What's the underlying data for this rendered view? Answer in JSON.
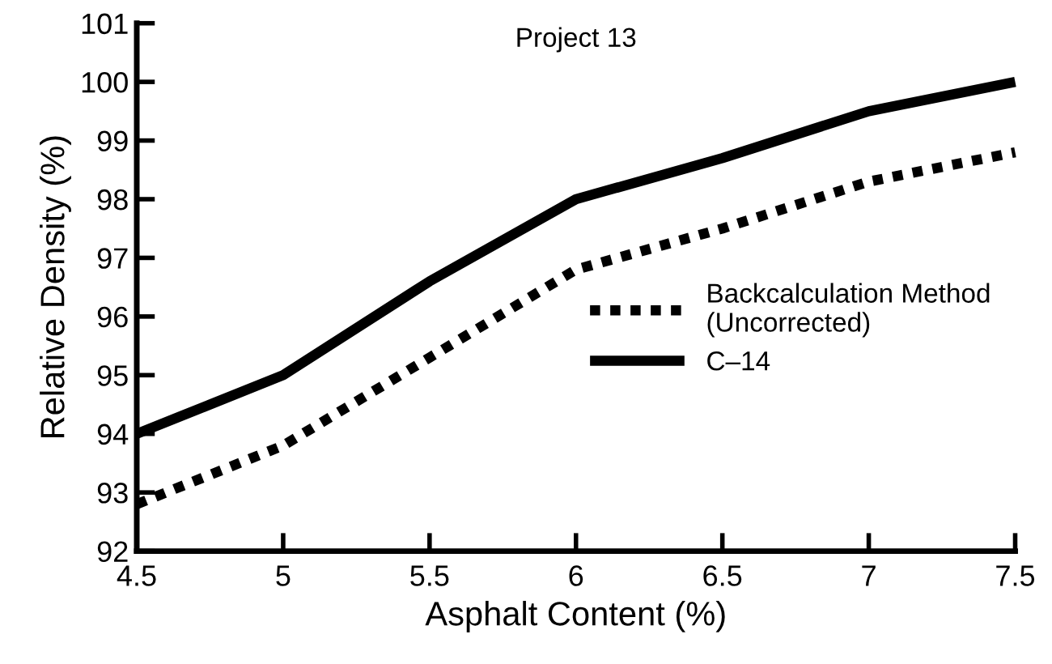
{
  "chart_data": {
    "type": "line",
    "title": "Project 13",
    "xlabel": "Asphalt Content (%)",
    "ylabel": "Relative Density (%)",
    "x": [
      4.5,
      5,
      5.5,
      6,
      6.5,
      7,
      7.5
    ],
    "series": [
      {
        "name": "Backcalculation Method\n(Uncorrected)",
        "color": "#000000",
        "line_style": "dotted",
        "values": [
          92.8,
          93.8,
          95.3,
          96.8,
          97.5,
          98.3,
          98.8
        ]
      },
      {
        "name": "C–14",
        "color": "#000000",
        "line_style": "solid",
        "values": [
          94.0,
          95.0,
          96.6,
          98.0,
          98.7,
          99.5,
          100.0
        ]
      }
    ],
    "xlim": [
      4.5,
      7.5
    ],
    "xticks": [
      4.5,
      5,
      5.5,
      6,
      6.5,
      7,
      7.5
    ],
    "ylim": [
      92,
      101
    ],
    "yticks": [
      92,
      93,
      94,
      95,
      96,
      97,
      98,
      99,
      100,
      101
    ],
    "grid": false,
    "legend": "right",
    "marker": "none"
  }
}
